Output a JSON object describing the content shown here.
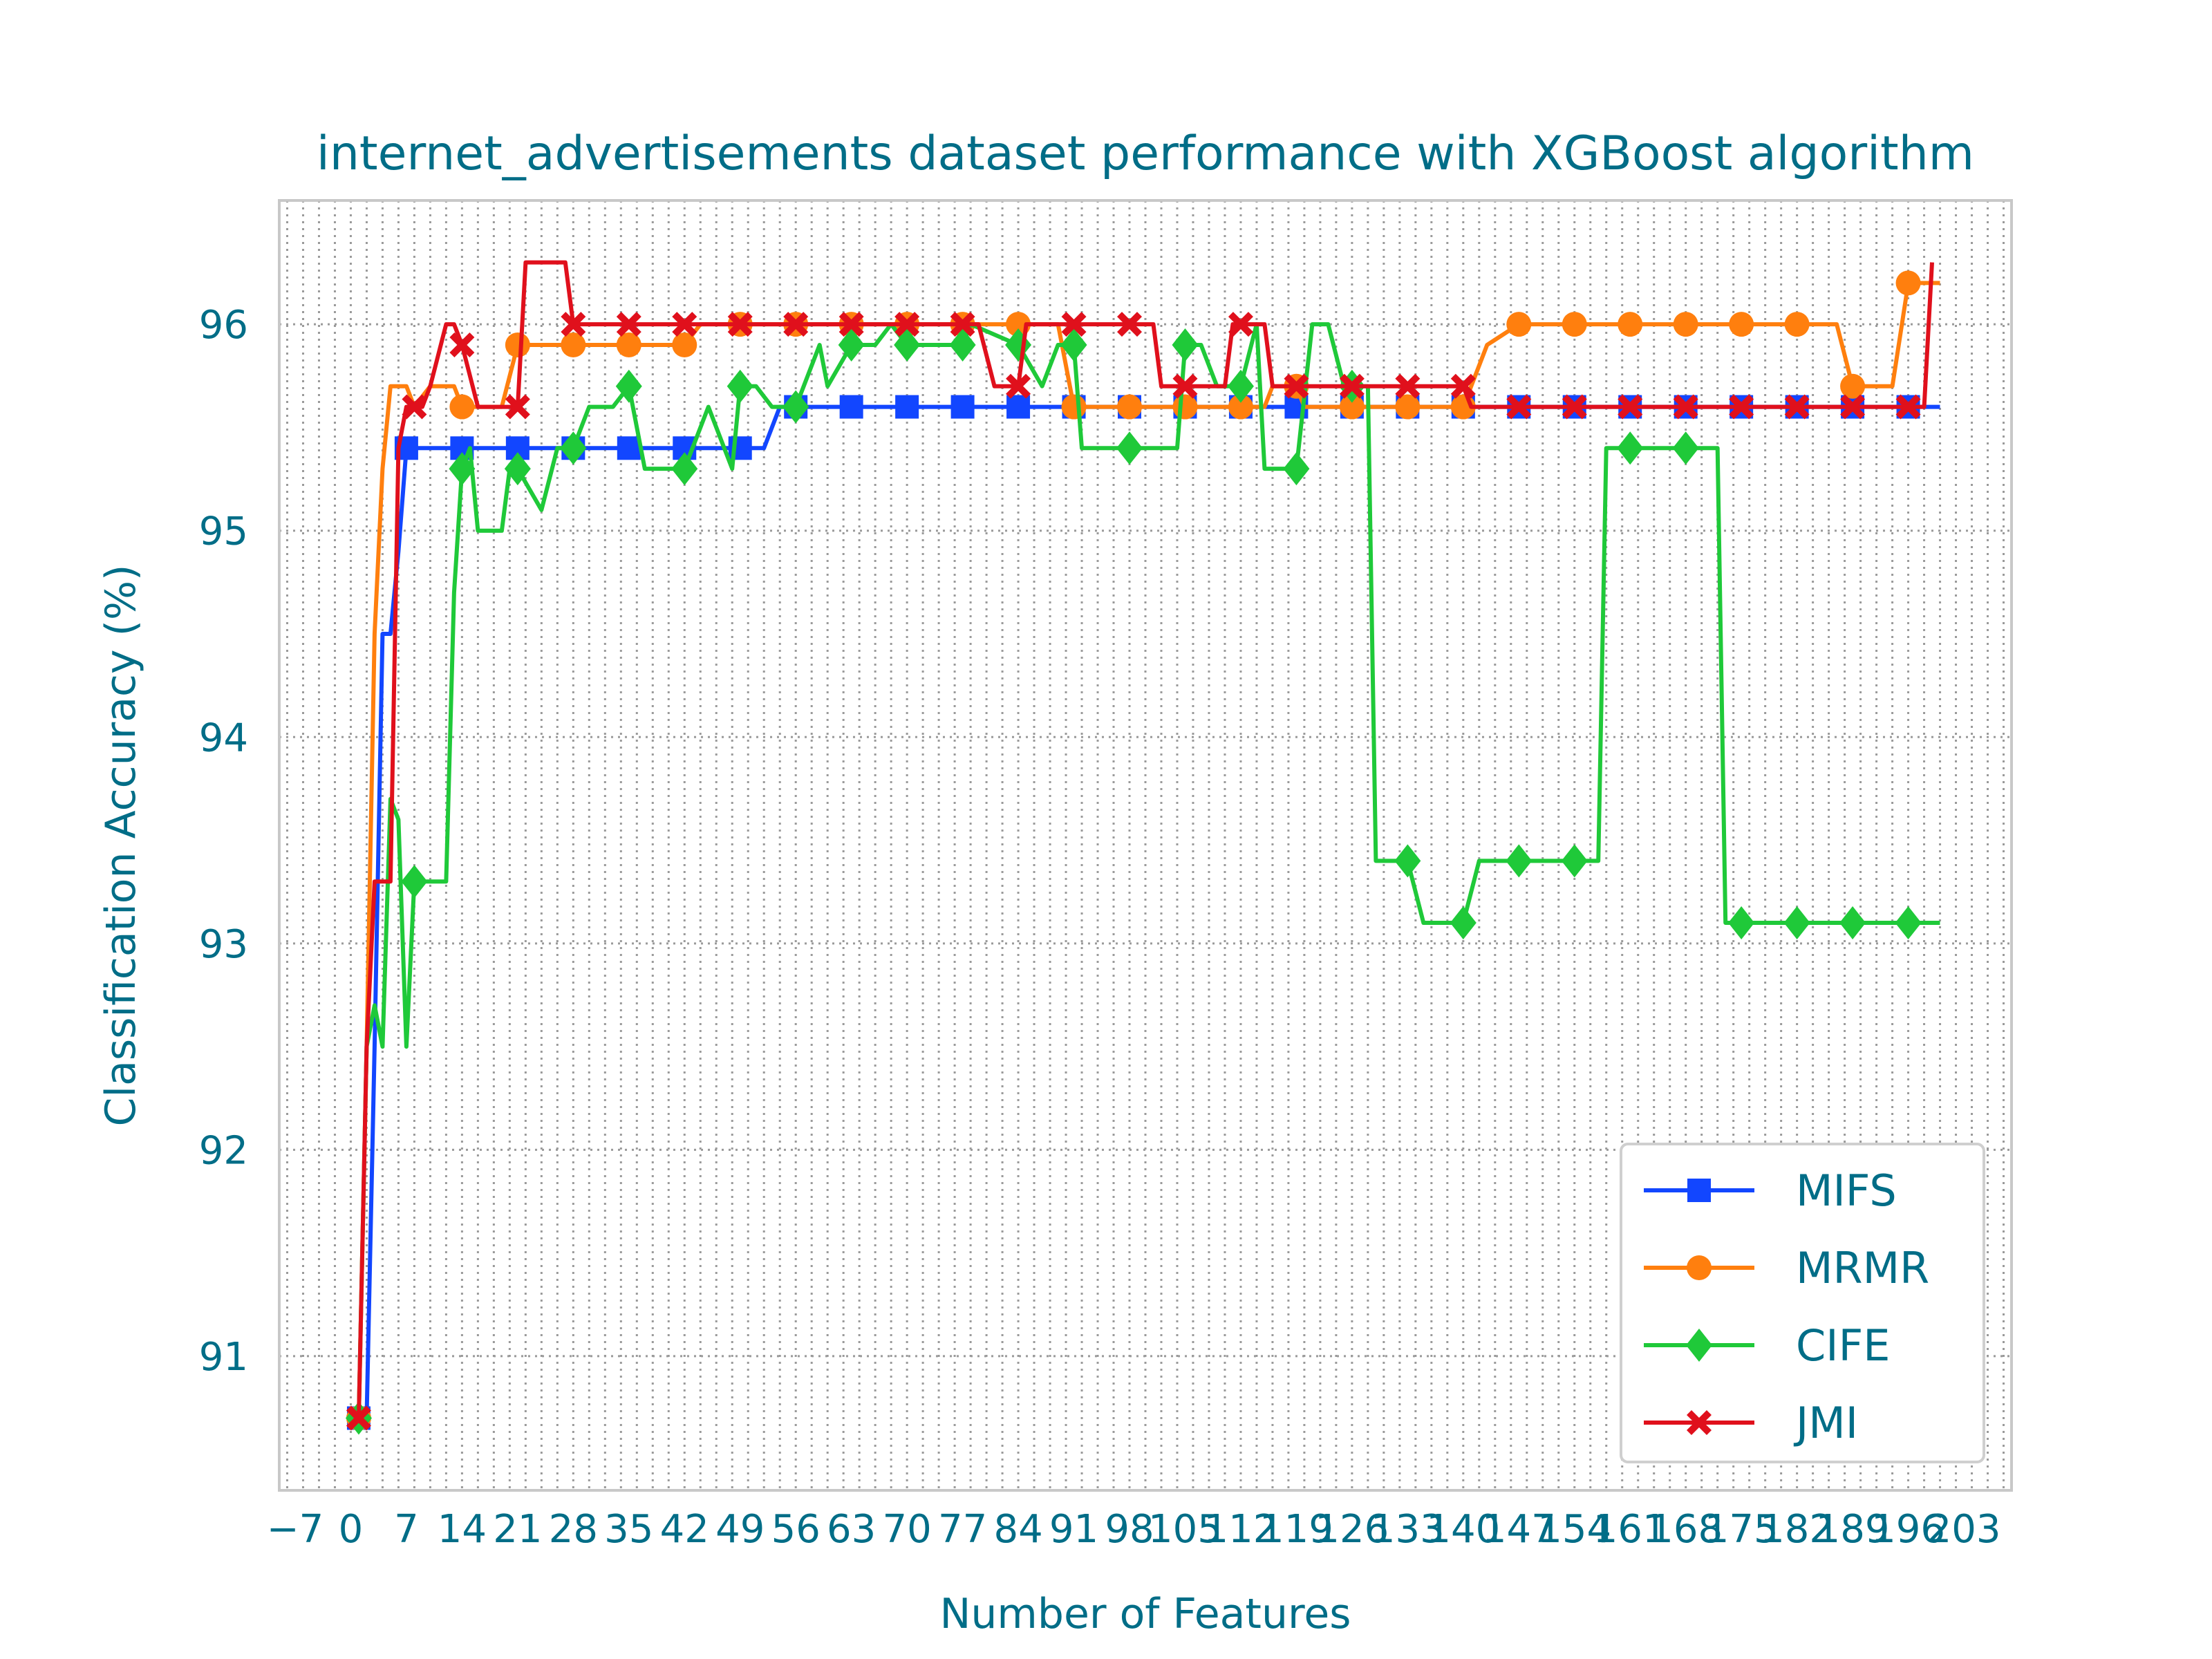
{
  "chart_data": {
    "type": "line",
    "title": "internet_advertisements dataset performance with XGBoost algorithm",
    "xlabel": "Number of Features",
    "ylabel": "Classification Accuracy (%)",
    "xlim": [
      -9,
      209
    ],
    "ylim": [
      90.35,
      96.6
    ],
    "x_ticks": [
      -7,
      0,
      7,
      14,
      21,
      28,
      35,
      42,
      49,
      56,
      63,
      70,
      77,
      84,
      91,
      98,
      105,
      112,
      119,
      126,
      133,
      140,
      147,
      154,
      161,
      168,
      175,
      182,
      189,
      196,
      203
    ],
    "x_tick_labels": [
      "−7",
      "0",
      "7",
      "14",
      "21",
      "28",
      "35",
      "42",
      "49",
      "56",
      "63",
      "70",
      "77",
      "84",
      "91",
      "98",
      "105",
      "112",
      "119",
      "126",
      "133",
      "140",
      "147",
      "154",
      "161",
      "168",
      "175",
      "182",
      "189",
      "196",
      "203"
    ],
    "y_ticks": [
      91,
      92,
      93,
      94,
      95,
      96
    ],
    "y_tick_labels": [
      "91",
      "92",
      "93",
      "94",
      "95",
      "96"
    ],
    "grid": true,
    "legend_position": "lower-right",
    "series": [
      {
        "name": "MIFS",
        "color": "#1246ff",
        "marker": "square",
        "points": [
          [
            1,
            90.7
          ],
          [
            2,
            90.7
          ],
          [
            3,
            92.5
          ],
          [
            4,
            94.5
          ],
          [
            5,
            94.5
          ],
          [
            6,
            94.9
          ],
          [
            7,
            95.4
          ],
          [
            14,
            95.4
          ],
          [
            21,
            95.4
          ],
          [
            28,
            95.4
          ],
          [
            35,
            95.4
          ],
          [
            42,
            95.4
          ],
          [
            49,
            95.4
          ],
          [
            52,
            95.4
          ],
          [
            54,
            95.6
          ],
          [
            56,
            95.6
          ],
          [
            63,
            95.6
          ],
          [
            70,
            95.6
          ],
          [
            77,
            95.6
          ],
          [
            84,
            95.6
          ],
          [
            91,
            95.6
          ],
          [
            98,
            95.6
          ],
          [
            105,
            95.6
          ],
          [
            112,
            95.6
          ],
          [
            119,
            95.6
          ],
          [
            126,
            95.6
          ],
          [
            133,
            95.6
          ],
          [
            140,
            95.6
          ],
          [
            147,
            95.6
          ],
          [
            154,
            95.6
          ],
          [
            161,
            95.6
          ],
          [
            168,
            95.6
          ],
          [
            175,
            95.6
          ],
          [
            182,
            95.6
          ],
          [
            189,
            95.6
          ],
          [
            196,
            95.6
          ],
          [
            200,
            95.6
          ]
        ],
        "markers_at": [
          1,
          7,
          14,
          21,
          28,
          35,
          42,
          49,
          56,
          63,
          70,
          77,
          84,
          91,
          98,
          105,
          112,
          119,
          126,
          133,
          140,
          147,
          154,
          161,
          168,
          175,
          182,
          189,
          196
        ]
      },
      {
        "name": "MRMR",
        "color": "#ff7f0e",
        "marker": "circle",
        "points": [
          [
            1,
            90.7
          ],
          [
            2,
            92.5
          ],
          [
            3,
            94.5
          ],
          [
            4,
            95.3
          ],
          [
            5,
            95.7
          ],
          [
            7,
            95.7
          ],
          [
            8,
            95.6
          ],
          [
            10,
            95.7
          ],
          [
            13,
            95.7
          ],
          [
            14,
            95.6
          ],
          [
            19,
            95.6
          ],
          [
            21,
            95.9
          ],
          [
            28,
            95.9
          ],
          [
            35,
            95.9
          ],
          [
            42,
            95.9
          ],
          [
            44,
            96.0
          ],
          [
            56,
            96.0
          ],
          [
            63,
            96.0
          ],
          [
            70,
            96.0
          ],
          [
            77,
            96.0
          ],
          [
            84,
            96.0
          ],
          [
            89,
            96.0
          ],
          [
            91,
            95.6
          ],
          [
            98,
            95.6
          ],
          [
            105,
            95.6
          ],
          [
            112,
            95.6
          ],
          [
            115,
            95.6
          ],
          [
            116,
            95.7
          ],
          [
            119,
            95.7
          ],
          [
            120,
            95.6
          ],
          [
            126,
            95.6
          ],
          [
            133,
            95.6
          ],
          [
            140,
            95.6
          ],
          [
            143,
            95.9
          ],
          [
            147,
            96.0
          ],
          [
            154,
            96.0
          ],
          [
            161,
            96.0
          ],
          [
            168,
            96.0
          ],
          [
            175,
            96.0
          ],
          [
            182,
            96.0
          ],
          [
            187,
            96.0
          ],
          [
            189,
            95.7
          ],
          [
            194,
            95.7
          ],
          [
            196,
            96.2
          ],
          [
            200,
            96.2
          ]
        ],
        "markers_at": [
          1,
          14,
          21,
          28,
          35,
          42,
          49,
          56,
          63,
          70,
          77,
          84,
          91,
          98,
          105,
          112,
          119,
          126,
          133,
          140,
          147,
          154,
          161,
          168,
          175,
          182,
          189,
          196
        ]
      },
      {
        "name": "CIFE",
        "color": "#1fc939",
        "marker": "diamond",
        "points": [
          [
            1,
            90.7
          ],
          [
            2,
            92.5
          ],
          [
            3,
            92.7
          ],
          [
            4,
            92.5
          ],
          [
            5,
            93.7
          ],
          [
            6,
            93.6
          ],
          [
            7,
            92.5
          ],
          [
            8,
            93.3
          ],
          [
            10,
            93.3
          ],
          [
            12,
            93.3
          ],
          [
            13,
            94.7
          ],
          [
            14,
            95.3
          ],
          [
            15,
            95.4
          ],
          [
            16,
            95.0
          ],
          [
            19,
            95.0
          ],
          [
            20,
            95.3
          ],
          [
            21,
            95.3
          ],
          [
            24,
            95.1
          ],
          [
            26,
            95.4
          ],
          [
            28,
            95.4
          ],
          [
            30,
            95.6
          ],
          [
            33,
            95.6
          ],
          [
            35,
            95.7
          ],
          [
            37,
            95.3
          ],
          [
            42,
            95.3
          ],
          [
            45,
            95.6
          ],
          [
            48,
            95.3
          ],
          [
            49,
            95.7
          ],
          [
            51,
            95.7
          ],
          [
            53,
            95.6
          ],
          [
            56,
            95.6
          ],
          [
            59,
            95.9
          ],
          [
            60,
            95.7
          ],
          [
            63,
            95.9
          ],
          [
            66,
            95.9
          ],
          [
            68,
            96.0
          ],
          [
            70,
            95.9
          ],
          [
            77,
            95.9
          ],
          [
            78,
            96.0
          ],
          [
            84,
            95.9
          ],
          [
            87,
            95.7
          ],
          [
            89,
            95.9
          ],
          [
            91,
            95.9
          ],
          [
            92,
            95.4
          ],
          [
            98,
            95.4
          ],
          [
            99,
            95.4
          ],
          [
            104,
            95.4
          ],
          [
            105,
            95.9
          ],
          [
            107,
            95.9
          ],
          [
            109,
            95.7
          ],
          [
            112,
            95.7
          ],
          [
            114,
            96.0
          ],
          [
            115,
            95.3
          ],
          [
            119,
            95.3
          ],
          [
            121,
            96.0
          ],
          [
            123,
            96.0
          ],
          [
            125,
            95.7
          ],
          [
            126,
            95.7
          ],
          [
            128,
            95.7
          ],
          [
            129,
            93.4
          ],
          [
            133,
            93.4
          ],
          [
            135,
            93.1
          ],
          [
            140,
            93.1
          ],
          [
            142,
            93.4
          ],
          [
            147,
            93.4
          ],
          [
            154,
            93.4
          ],
          [
            157,
            93.4
          ],
          [
            158,
            95.4
          ],
          [
            161,
            95.4
          ],
          [
            168,
            95.4
          ],
          [
            172,
            95.4
          ],
          [
            173,
            93.1
          ],
          [
            175,
            93.1
          ],
          [
            182,
            93.1
          ],
          [
            189,
            93.1
          ],
          [
            196,
            93.1
          ],
          [
            200,
            93.1
          ]
        ],
        "markers_at": [
          1,
          8,
          14,
          21,
          28,
          35,
          42,
          49,
          56,
          63,
          70,
          77,
          84,
          91,
          98,
          105,
          112,
          119,
          126,
          133,
          140,
          147,
          154,
          161,
          168,
          175,
          182,
          189,
          196
        ]
      },
      {
        "name": "JMI",
        "color": "#e0101c",
        "marker": "x",
        "points": [
          [
            1,
            90.7
          ],
          [
            2,
            92.5
          ],
          [
            3,
            93.3
          ],
          [
            5,
            93.3
          ],
          [
            6,
            95.4
          ],
          [
            7,
            95.6
          ],
          [
            8,
            95.6
          ],
          [
            9,
            95.6
          ],
          [
            10,
            95.7
          ],
          [
            12,
            96.0
          ],
          [
            13,
            96.0
          ],
          [
            14,
            95.9
          ],
          [
            16,
            95.6
          ],
          [
            21,
            95.6
          ],
          [
            22,
            96.3
          ],
          [
            27,
            96.3
          ],
          [
            28,
            96.0
          ],
          [
            35,
            96.0
          ],
          [
            42,
            96.0
          ],
          [
            49,
            96.0
          ],
          [
            56,
            96.0
          ],
          [
            63,
            96.0
          ],
          [
            70,
            96.0
          ],
          [
            77,
            96.0
          ],
          [
            79,
            96.0
          ],
          [
            81,
            95.7
          ],
          [
            84,
            95.7
          ],
          [
            85,
            96.0
          ],
          [
            91,
            96.0
          ],
          [
            98,
            96.0
          ],
          [
            101,
            96.0
          ],
          [
            102,
            95.7
          ],
          [
            105,
            95.7
          ],
          [
            110,
            95.7
          ],
          [
            111,
            96.0
          ],
          [
            112,
            96.0
          ],
          [
            115,
            96.0
          ],
          [
            116,
            95.7
          ],
          [
            119,
            95.7
          ],
          [
            126,
            95.7
          ],
          [
            133,
            95.7
          ],
          [
            140,
            95.7
          ],
          [
            141,
            95.6
          ],
          [
            147,
            95.6
          ],
          [
            154,
            95.6
          ],
          [
            161,
            95.6
          ],
          [
            168,
            95.6
          ],
          [
            175,
            95.6
          ],
          [
            182,
            95.6
          ],
          [
            189,
            95.6
          ],
          [
            196,
            95.6
          ],
          [
            198,
            95.6
          ],
          [
            199,
            96.3
          ]
        ],
        "markers_at": [
          1,
          8,
          14,
          21,
          28,
          35,
          42,
          49,
          56,
          63,
          70,
          77,
          84,
          91,
          98,
          105,
          112,
          119,
          126,
          133,
          140,
          147,
          154,
          161,
          168,
          175,
          182,
          189,
          196
        ]
      }
    ]
  }
}
